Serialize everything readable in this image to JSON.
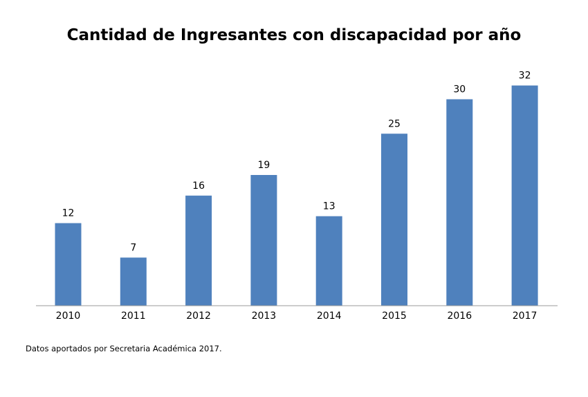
{
  "chart_data": {
    "type": "bar",
    "title": "Cantidad de Ingresantes con discapacidad por año",
    "categories": [
      "2010",
      "2011",
      "2012",
      "2013",
      "2014",
      "2015",
      "2016",
      "2017"
    ],
    "values": [
      12,
      7,
      16,
      19,
      13,
      25,
      30,
      32
    ],
    "xlabel": "",
    "ylabel": "",
    "ylim": [
      0,
      32
    ],
    "grid": false,
    "bar_color": "#4f81bd",
    "axis_color": "#9a9a9a"
  },
  "footer": {
    "source": "Datos aportados por Secretaria Académica 2017."
  }
}
